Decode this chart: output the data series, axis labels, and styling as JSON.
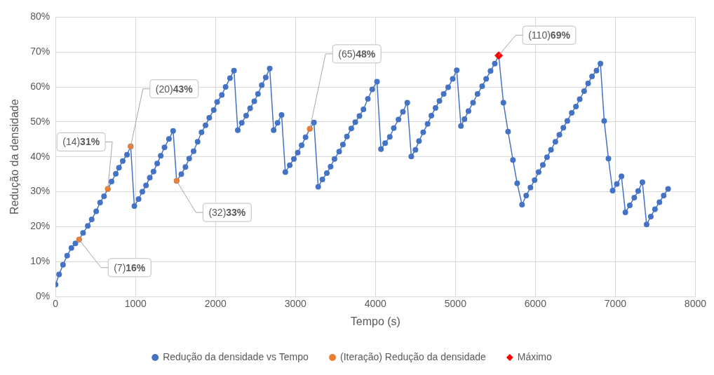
{
  "chart_data": {
    "type": "line",
    "xlabel": "Tempo (s)",
    "ylabel": "Redução da densidade",
    "xlim": [
      0,
      8000
    ],
    "xticks": [
      0,
      1000,
      2000,
      3000,
      4000,
      5000,
      6000,
      7000,
      8000
    ],
    "ylim": [
      0,
      80
    ],
    "yticks": [
      {
        "value": 0,
        "label": "0%"
      },
      {
        "value": 10,
        "label": "10%"
      },
      {
        "value": 20,
        "label": "20%"
      },
      {
        "value": 30,
        "label": "30%"
      },
      {
        "value": 40,
        "label": "40%"
      },
      {
        "value": 50,
        "label": "50%"
      },
      {
        "value": 60,
        "label": "60%"
      },
      {
        "value": 70,
        "label": "70%"
      },
      {
        "value": 80,
        "label": "80%"
      }
    ],
    "grid": true,
    "legend": "bottom",
    "series": [
      {
        "name": "Redução da densidade vs Tempo",
        "marker": "circle",
        "color": "#4472c4",
        "x": [
          0,
          44,
          93,
          145,
          198,
          248,
          294,
          344,
          403,
          452,
          508,
          557,
          606,
          653,
          700,
          753,
          793,
          840,
          893,
          939,
          985,
          1038,
          1085,
          1131,
          1178,
          1225,
          1271,
          1315,
          1362,
          1418,
          1470,
          1514,
          1572,
          1624,
          1671,
          1726,
          1776,
          1825,
          1875,
          1922,
          1978,
          2020,
          2079,
          2126,
          2181,
          2231,
          2278,
          2328,
          2383,
          2433,
          2485,
          2531,
          2578,
          2628,
          2678,
          2727,
          2776,
          2826,
          2873,
          2928,
          2980,
          3028,
          3077,
          3126,
          3179,
          3231,
          3284,
          3336,
          3392,
          3439,
          3488,
          3546,
          3593,
          3643,
          3698,
          3748,
          3800,
          3850,
          3905,
          3960,
          4019,
          4069,
          4121,
          4179,
          4229,
          4288,
          4343,
          4398,
          4448,
          4500,
          4544,
          4597,
          4652,
          4699,
          4751,
          4800,
          4853,
          4909,
          4966,
          5016,
          5069,
          5113,
          5163,
          5220,
          5276,
          5334,
          5384,
          5439,
          5492,
          5541,
          5600,
          5658,
          5719,
          5772,
          5833,
          5885,
          5938,
          5990,
          6040,
          6093,
          6145,
          6195,
          6250,
          6300,
          6349,
          6399,
          6454,
          6507,
          6554,
          6609,
          6659,
          6708,
          6764,
          6813,
          6860,
          6913,
          6965,
          7018,
          7076,
          7125,
          7180,
          7236,
          7285,
          7338,
          7390,
          7443,
          7495,
          7551,
          7604,
          7659
        ],
        "values": [
          3.4,
          6.3,
          9.1,
          11.7,
          13.9,
          15.2,
          16.3,
          18.2,
          20.2,
          22.1,
          24.4,
          26.9,
          28.7,
          30.8,
          32.9,
          35.1,
          36.9,
          38.8,
          40.6,
          43.0,
          25.9,
          27.9,
          30.0,
          31.8,
          34.0,
          35.8,
          38.1,
          40.3,
          42.7,
          45.1,
          47.4,
          33.1,
          35.0,
          37.1,
          39.5,
          41.6,
          44.3,
          47.0,
          49.0,
          51.2,
          53.4,
          55.7,
          57.7,
          60.0,
          62.5,
          64.7,
          47.6,
          49.7,
          51.8,
          53.9,
          55.9,
          58.0,
          60.5,
          62.7,
          65.3,
          47.6,
          49.7,
          52.0,
          35.6,
          37.6,
          39.4,
          41.2,
          43.3,
          45.6,
          48.0,
          49.8,
          31.4,
          33.5,
          35.3,
          37.2,
          39.4,
          41.5,
          43.5,
          45.8,
          48.1,
          49.9,
          51.7,
          53.6,
          56.6,
          59.3,
          61.5,
          42.2,
          43.9,
          45.7,
          48.2,
          50.7,
          52.9,
          55.5,
          40.1,
          42.0,
          44.5,
          47.0,
          49.4,
          51.8,
          54.0,
          56.0,
          58.0,
          59.9,
          62.3,
          64.8,
          48.8,
          50.8,
          53.1,
          55.5,
          58.0,
          60.2,
          62.3,
          64.6,
          66.7,
          69.0,
          55.5,
          47.2,
          39.1,
          32.4,
          26.3,
          28.9,
          31.2,
          33.3,
          35.6,
          37.7,
          39.9,
          42.0,
          44.3,
          46.3,
          48.3,
          50.3,
          52.6,
          54.4,
          56.5,
          58.8,
          61.0,
          63.0,
          64.7,
          66.7,
          50.3,
          39.5,
          30.3,
          32.2,
          34.4,
          24.1,
          26.1,
          28.3,
          30.2,
          32.7,
          20.6,
          22.9,
          25.0,
          27.0,
          28.9,
          30.8
        ]
      },
      {
        "name": "(Iteração) Redução da densidade",
        "type": "scatter",
        "marker": "circle",
        "color": "#ed7d31",
        "x": [
          294,
          653,
          939,
          1514,
          3179
        ],
        "values": [
          16.3,
          30.8,
          43.0,
          33.1,
          48.0
        ],
        "value_labels": [
          "(7)16%",
          "(14)31%",
          "(20)43%",
          "(32)33%",
          "(65)48%"
        ]
      },
      {
        "name": "Máximo",
        "type": "scatter",
        "marker": "diamond",
        "color": "#ff0000",
        "x": [
          5541
        ],
        "values": [
          69.0
        ],
        "value_labels": [
          "(110)69%"
        ]
      }
    ]
  }
}
